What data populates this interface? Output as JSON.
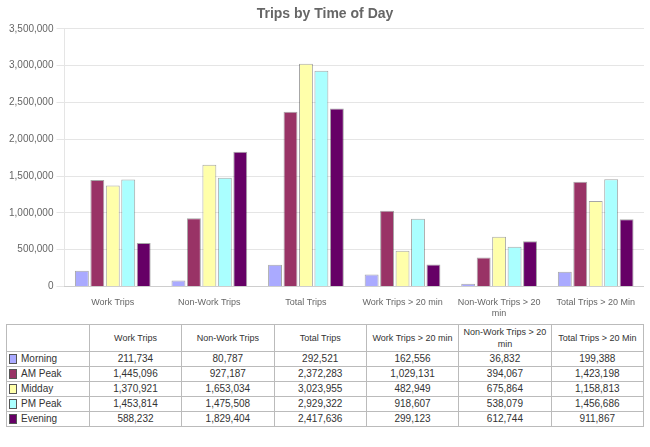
{
  "chart_data": {
    "type": "bar",
    "title": "Trips by Time of Day",
    "categories": [
      "Work Trips",
      "Non-Work Trips",
      "Total Trips",
      "Work Trips > 20 min",
      "Non-Work Trips > 20\nmin",
      "Total Trips > 20 Min"
    ],
    "series": [
      {
        "name": "Morning",
        "color": "#AAAAFF",
        "values": [
          211734,
          80787,
          292521,
          162556,
          36832,
          199388
        ],
        "value_labels": [
          "211,734",
          "80,787",
          "292,521",
          "162,556",
          "36,832",
          "199,388"
        ]
      },
      {
        "name": "AM Peak",
        "color": "#993366",
        "values": [
          1445096,
          927187,
          2372283,
          1029131,
          394067,
          1423198
        ],
        "value_labels": [
          "1,445,096",
          "927,187",
          "2,372,283",
          "1,029,131",
          "394,067",
          "1,423,198"
        ]
      },
      {
        "name": "Midday",
        "color": "#FFFFAA",
        "values": [
          1370921,
          1653034,
          3023955,
          482949,
          675864,
          1158813
        ],
        "value_labels": [
          "1,370,921",
          "1,653,034",
          "3,023,955",
          "482,949",
          "675,864",
          "1,158,813"
        ]
      },
      {
        "name": "PM Peak",
        "color": "#AAFFFF",
        "values": [
          1453814,
          1475508,
          2929322,
          918607,
          538079,
          1456686
        ],
        "value_labels": [
          "1,453,814",
          "1,475,508",
          "2,929,322",
          "918,607",
          "538,079",
          "1,456,686"
        ]
      },
      {
        "name": "Evening",
        "color": "#660066",
        "values": [
          588232,
          1829404,
          2417636,
          299123,
          612744,
          911867
        ],
        "value_labels": [
          "588,232",
          "1,829,404",
          "2,417,636",
          "299,123",
          "612,744",
          "911,867"
        ]
      }
    ],
    "ylim": [
      0,
      3500000
    ],
    "yticks": [
      0,
      {
        "value": 500000,
        "label": "500,000"
      },
      {
        "value": 1000000,
        "label": "1,000,000"
      },
      {
        "value": 1500000,
        "label": "1,500,000"
      },
      {
        "value": 2000000,
        "label": "2,000,000"
      },
      {
        "value": 2500000,
        "label": "2,500,000"
      },
      {
        "value": 3000000,
        "label": "3,000,000"
      },
      {
        "value": 3500000,
        "label": "3,500,000"
      }
    ],
    "grid": true
  }
}
